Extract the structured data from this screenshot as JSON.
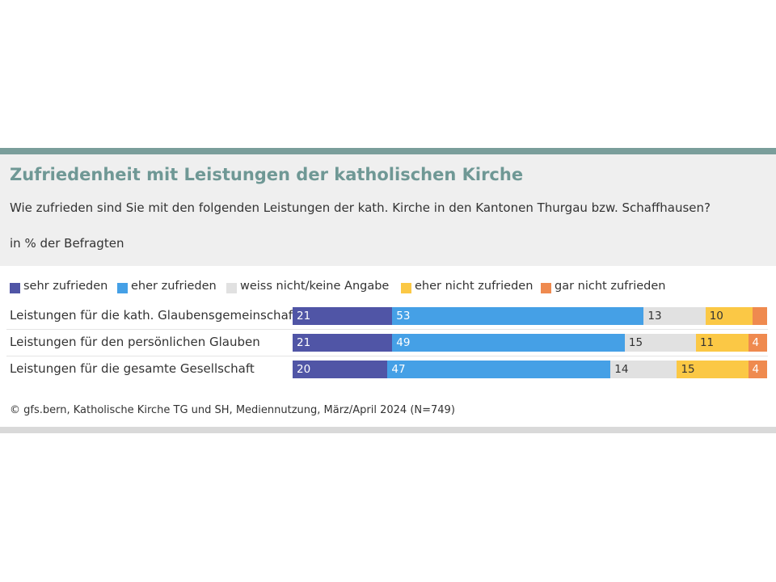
{
  "chart_data": {
    "type": "bar",
    "orientation": "horizontal",
    "stacked": true,
    "title": "Zufriedenheit mit Leistungen der katholischen Kirche",
    "subtitle": "Wie zufrieden sind Sie mit den folgenden Leistungen der kath. Kirche in den Kantonen Thurgau bzw. Schaffhausen?",
    "unit_label": "in % der Befragten",
    "source": "© gfs.bern, Katholische Kirche TG und SH, Mediennutzung, März/April 2024 (N=749)",
    "legend_position": "top",
    "categories": [
      "Leistungen für die kath. Glaubensgemeinschaft",
      "Leistungen für den persönlichen Glauben",
      "Leistungen für die gesamte Gesellschaft"
    ],
    "series": [
      {
        "name": "sehr zufrieden",
        "color": "#5055a6",
        "text_color": "#ffffff",
        "values": [
          21,
          21,
          20
        ],
        "labels": [
          "21",
          "21",
          "20"
        ]
      },
      {
        "name": "eher zufrieden",
        "color": "#45a0e6",
        "text_color": "#ffffff",
        "values": [
          53,
          49,
          47
        ],
        "labels": [
          "53",
          "49",
          "47"
        ]
      },
      {
        "name": "weiss nicht/keine Angabe",
        "color": "#e1e1e1",
        "text_color": "#333333",
        "values": [
          13,
          15,
          14
        ],
        "labels": [
          "13",
          "15",
          "14"
        ]
      },
      {
        "name": "eher nicht zufrieden",
        "color": "#fbc845",
        "text_color": "#333333",
        "values": [
          10,
          11,
          15
        ],
        "labels": [
          "10",
          "11",
          "15"
        ]
      },
      {
        "name": "gar nicht zufrieden",
        "color": "#ef8a4f",
        "text_color": "#ffffff",
        "values": [
          3,
          4,
          4
        ],
        "labels": [
          "",
          "4",
          "4"
        ]
      }
    ],
    "xlim": [
      0,
      100
    ]
  }
}
